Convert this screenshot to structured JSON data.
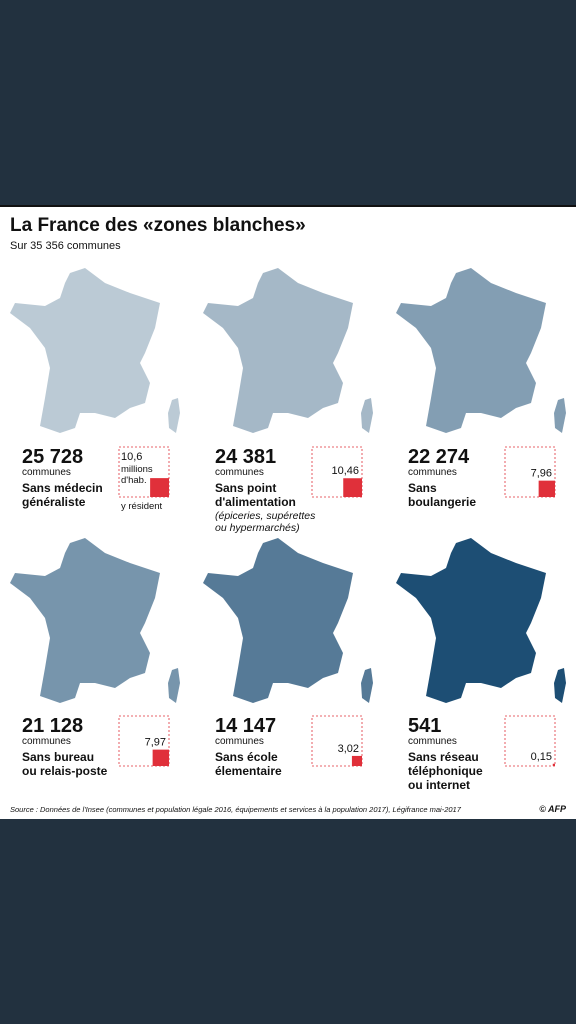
{
  "header": {
    "title": "La France des «zones blanches»",
    "subtitle": "Sur 35 356 communes"
  },
  "panels": [
    {
      "count": "25 728",
      "unit": "communes",
      "label": [
        "Sans médecin",
        "généraliste"
      ],
      "population": 10.6,
      "population_label": "10,6",
      "population_unit": [
        "millions",
        "d'hab."
      ],
      "population_note": "y résident"
    },
    {
      "count": "24 381",
      "unit": "communes",
      "label": [
        "Sans point",
        "d'alimentation"
      ],
      "note": [
        "(épiceries, supérettes",
        "ou hypermarchés)"
      ],
      "population": 10.46,
      "population_label": "10,46"
    },
    {
      "count": "22 274",
      "unit": "communes",
      "label": [
        "Sans",
        "boulangerie"
      ],
      "population": 7.96,
      "population_label": "7,96"
    },
    {
      "count": "21 128",
      "unit": "communes",
      "label": [
        "Sans bureau",
        "ou relais-poste"
      ],
      "population": 7.97,
      "population_label": "7,97"
    },
    {
      "count": "14 147",
      "unit": "communes",
      "label": [
        "Sans école",
        "élementaire"
      ],
      "population": 3.02,
      "population_label": "3,02"
    },
    {
      "count": "541",
      "unit": "communes",
      "label": [
        "Sans réseau",
        "téléphonique",
        "ou internet"
      ],
      "population": 0.15,
      "population_label": "0,15"
    }
  ],
  "source": "Source : Données de l'Insee (communes et population légale 2016, équipements et services à la population 2017), Légifrance mai-2017",
  "credit": "© AFP"
}
